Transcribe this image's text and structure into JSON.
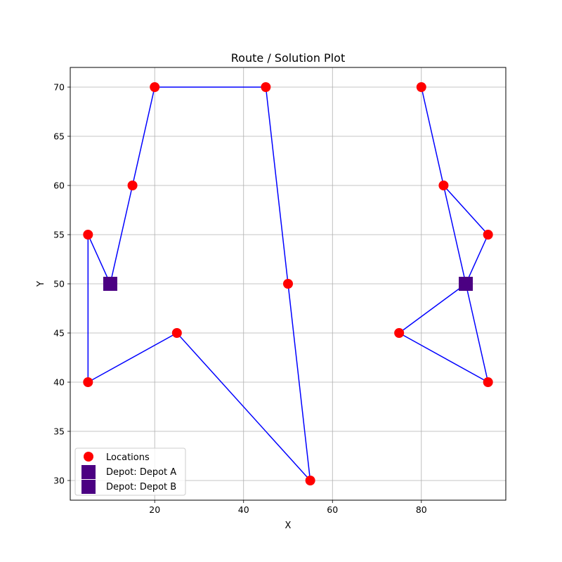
{
  "chart_data": {
    "type": "scatter",
    "title": "Route / Solution Plot",
    "xlabel": "X",
    "ylabel": "Y",
    "xlim": [
      1,
      99
    ],
    "ylim": [
      28,
      72
    ],
    "xticks": [
      20,
      40,
      60,
      80
    ],
    "yticks": [
      30,
      35,
      40,
      45,
      50,
      55,
      60,
      65,
      70
    ],
    "grid": true,
    "legend_position": "lower-left",
    "colors": {
      "locations": "#ff0000",
      "depots": "#4b0082",
      "route": "#0000ff",
      "grid": "#b0b0b0"
    },
    "locations": {
      "name": "Locations",
      "x": [
        5,
        15,
        20,
        45,
        50,
        55,
        25,
        5,
        80,
        85,
        95,
        95,
        75
      ],
      "y": [
        55,
        60,
        70,
        70,
        50,
        30,
        45,
        40,
        70,
        60,
        55,
        40,
        45
      ]
    },
    "depots": [
      {
        "name": "Depot: Depot A",
        "x": 10,
        "y": 50
      },
      {
        "name": "Depot: Depot B",
        "x": 90,
        "y": 50
      }
    ],
    "routes": [
      {
        "x": [
          10,
          15,
          20,
          45,
          50,
          55,
          25,
          5,
          5,
          10
        ],
        "y": [
          50,
          60,
          70,
          70,
          50,
          30,
          45,
          40,
          55,
          50
        ]
      },
      {
        "x": [
          90,
          95,
          85,
          80,
          85,
          90
        ],
        "y": [
          50,
          55,
          60,
          70,
          60,
          50
        ]
      },
      {
        "x": [
          90,
          95,
          75,
          90
        ],
        "y": [
          50,
          40,
          45,
          50
        ]
      }
    ]
  }
}
